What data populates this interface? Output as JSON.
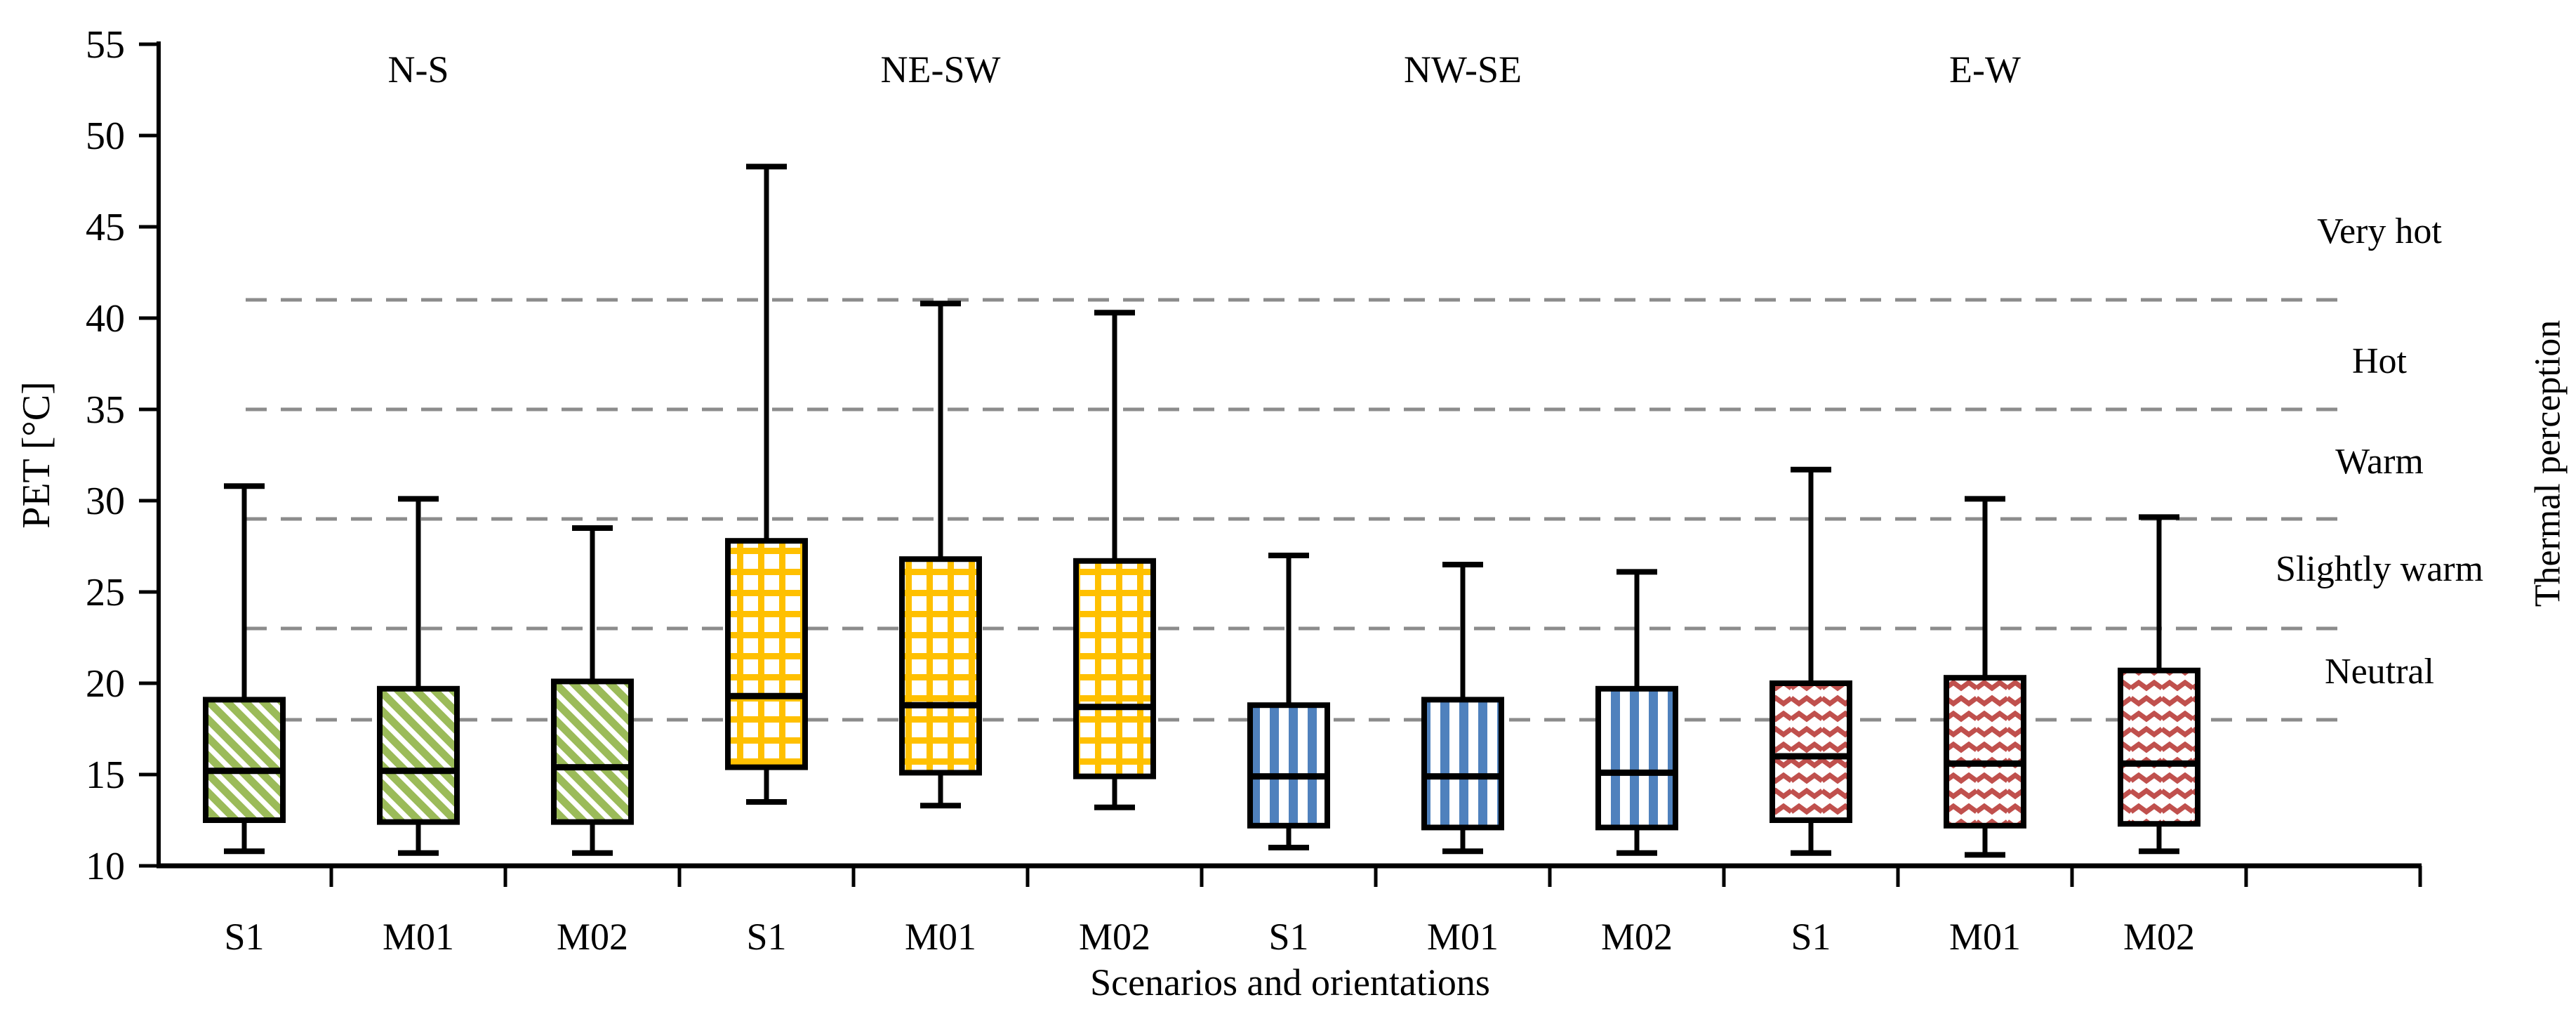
{
  "chart_data": {
    "type": "boxplot",
    "title": "",
    "xlabel": "Scenarios and orientations",
    "ylabel": "PET [°C]",
    "right_axis_label": "Thermal perception",
    "ylim": [
      10,
      55
    ],
    "yticks": [
      10,
      15,
      20,
      25,
      30,
      35,
      40,
      45,
      50,
      55
    ],
    "legend_position": "none",
    "grid": "horizontal dashed reference lines only",
    "reference_line_color": "#8C8C8C",
    "axis_color": "#000000",
    "reference_lines": [
      {
        "value": 41,
        "meaning": "Hot / Very hot boundary"
      },
      {
        "value": 35,
        "meaning": "Warm / Hot boundary"
      },
      {
        "value": 29,
        "meaning": "Slightly warm / Warm boundary"
      },
      {
        "value": 23,
        "meaning": "Neutral / Slightly warm boundary"
      },
      {
        "value": 18,
        "meaning": "lower Neutral boundary"
      }
    ],
    "thermal_labels": [
      {
        "label": "Very hot",
        "at_pet": 44.8
      },
      {
        "label": "Hot",
        "at_pet": 37.7
      },
      {
        "label": "Warm",
        "at_pet": 32.2
      },
      {
        "label": "Slightly warm",
        "at_pet": 26.3
      },
      {
        "label": "Neutral",
        "at_pet": 20.7
      }
    ],
    "groups": [
      {
        "label": "N-S",
        "color": "#9BBB59",
        "pattern": "diagonal-stripes",
        "boxes": [
          {
            "label": "S1",
            "min": 10.8,
            "q1": 12.5,
            "median": 15.2,
            "q3": 19.1,
            "max": 30.8
          },
          {
            "label": "M01",
            "min": 10.7,
            "q1": 12.4,
            "median": 15.2,
            "q3": 19.7,
            "max": 30.1
          },
          {
            "label": "M02",
            "min": 10.7,
            "q1": 12.4,
            "median": 15.4,
            "q3": 20.1,
            "max": 28.5
          }
        ]
      },
      {
        "label": "NE-SW",
        "color": "#FFC000",
        "pattern": "grid",
        "boxes": [
          {
            "label": "S1",
            "min": 13.5,
            "q1": 15.4,
            "median": 19.3,
            "q3": 27.8,
            "max": 48.3
          },
          {
            "label": "M01",
            "min": 13.3,
            "q1": 15.1,
            "median": 18.8,
            "q3": 26.8,
            "max": 40.8
          },
          {
            "label": "M02",
            "min": 13.2,
            "q1": 14.9,
            "median": 18.7,
            "q3": 26.7,
            "max": 40.3
          }
        ]
      },
      {
        "label": "NW-SE",
        "color": "#4F81BD",
        "pattern": "vertical-stripes",
        "boxes": [
          {
            "label": "S1",
            "min": 11.0,
            "q1": 12.2,
            "median": 14.9,
            "q3": 18.8,
            "max": 27.0
          },
          {
            "label": "M01",
            "min": 10.8,
            "q1": 12.1,
            "median": 14.9,
            "q3": 19.1,
            "max": 26.5
          },
          {
            "label": "M02",
            "min": 10.7,
            "q1": 12.1,
            "median": 15.1,
            "q3": 19.7,
            "max": 26.1
          }
        ]
      },
      {
        "label": "E-W",
        "color": "#C0504D",
        "pattern": "waves",
        "boxes": [
          {
            "label": "S1",
            "min": 10.7,
            "q1": 12.5,
            "median": 16.0,
            "q3": 20.0,
            "max": 31.7
          },
          {
            "label": "M01",
            "min": 10.6,
            "q1": 12.2,
            "median": 15.6,
            "q3": 20.3,
            "max": 30.1
          },
          {
            "label": "M02",
            "min": 10.8,
            "q1": 12.3,
            "median": 15.6,
            "q3": 20.7,
            "max": 29.1
          }
        ]
      }
    ]
  }
}
